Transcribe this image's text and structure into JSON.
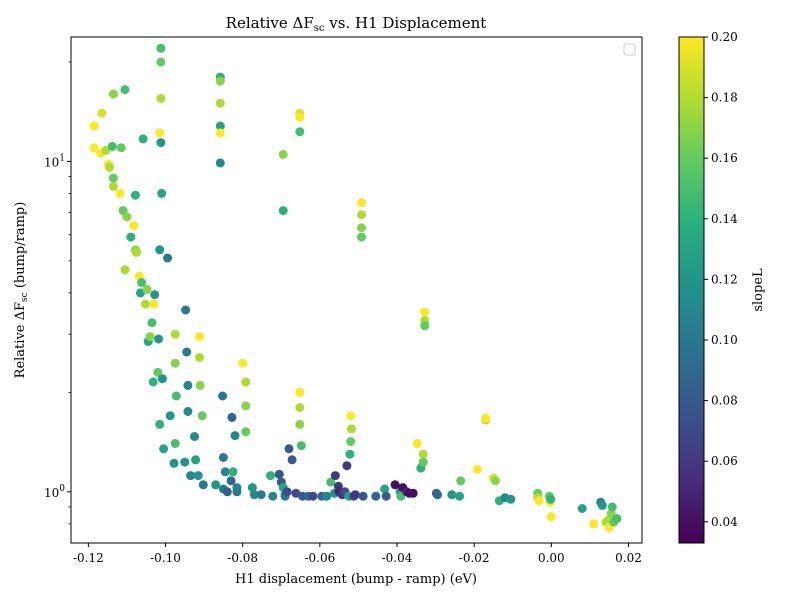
{
  "chart_data": {
    "type": "scatter",
    "title": "Relative ΔF",
    "title_sub": "sc",
    "title_tail": " vs. H1 Displacement",
    "xlabel": "H1 displacement (bump - ramp) (eV)",
    "ylabel": "Relative ΔF",
    "ylabel_sub": "sc",
    "ylabel_tail": " (bump/ramp)",
    "colorbar_label": "slopeL",
    "xlim": [
      -0.1245,
      0.0235
    ],
    "ylim": [
      0.7,
      23.8
    ],
    "yscale": "log",
    "clim": [
      0.033,
      0.2
    ],
    "colormap": "viridis",
    "grid": false,
    "legend": "top-right (empty)",
    "x_ticks": [
      "-0.12",
      "-0.10",
      "-0.08",
      "-0.06",
      "-0.04",
      "-0.02",
      "0.00",
      "0.02"
    ],
    "x_tick_values": [
      -0.12,
      -0.1,
      -0.08,
      -0.06,
      -0.04,
      -0.02,
      0.0,
      0.02
    ],
    "y_major_ticks": [
      1,
      10
    ],
    "y_major_labels": [
      "10",
      "10"
    ],
    "y_major_exps": [
      "0",
      "1"
    ],
    "y_minor_ticks": [
      0.8,
      0.9,
      2,
      3,
      4,
      5,
      6,
      7,
      8,
      9,
      20
    ],
    "colorbar_ticks": [
      "0.04",
      "0.06",
      "0.08",
      "0.10",
      "0.12",
      "0.14",
      "0.16",
      "0.18",
      "0.20"
    ],
    "colorbar_tick_values": [
      0.04,
      0.06,
      0.08,
      0.1,
      0.12,
      0.14,
      0.16,
      0.18,
      0.2
    ],
    "points": [
      [
        -0.1185,
        12.8,
        0.2
      ],
      [
        -0.1185,
        11.0,
        0.2
      ],
      [
        -0.1165,
        14.0,
        0.19
      ],
      [
        -0.1168,
        10.6,
        0.2
      ],
      [
        -0.1155,
        10.8,
        0.18
      ],
      [
        -0.1148,
        9.8,
        0.2
      ],
      [
        -0.1145,
        9.6,
        0.18
      ],
      [
        -0.1138,
        11.1,
        0.15
      ],
      [
        -0.1135,
        8.9,
        0.16
      ],
      [
        -0.1135,
        8.4,
        0.18
      ],
      [
        -0.1135,
        16.0,
        0.17
      ],
      [
        -0.1118,
        8.0,
        0.2
      ],
      [
        -0.1115,
        11.0,
        0.16
      ],
      [
        -0.111,
        7.1,
        0.16
      ],
      [
        -0.1105,
        16.5,
        0.15
      ],
      [
        -0.1105,
        4.7,
        0.18
      ],
      [
        -0.11,
        6.8,
        0.17
      ],
      [
        -0.109,
        5.9,
        0.14
      ],
      [
        -0.1082,
        6.4,
        0.2
      ],
      [
        -0.1078,
        5.4,
        0.17
      ],
      [
        -0.1078,
        7.9,
        0.14
      ],
      [
        -0.1075,
        5.3,
        0.18
      ],
      [
        -0.1068,
        4.5,
        0.2
      ],
      [
        -0.1065,
        4.0,
        0.13
      ],
      [
        -0.1062,
        4.3,
        0.15
      ],
      [
        -0.1058,
        11.7,
        0.14
      ],
      [
        -0.1052,
        3.7,
        0.18
      ],
      [
        -0.1048,
        4.1,
        0.17
      ],
      [
        -0.1045,
        2.85,
        0.13
      ],
      [
        -0.104,
        2.95,
        0.17
      ],
      [
        -0.1035,
        3.25,
        0.15
      ],
      [
        -0.1032,
        2.15,
        0.14
      ],
      [
        -0.103,
        3.7,
        0.2
      ],
      [
        -0.1028,
        3.95,
        0.12
      ],
      [
        -0.102,
        2.3,
        0.16
      ],
      [
        -0.1018,
        2.9,
        0.12
      ],
      [
        -0.1015,
        1.6,
        0.14
      ],
      [
        -0.1015,
        5.4,
        0.12
      ],
      [
        -0.1015,
        12.2,
        0.2
      ],
      [
        -0.1012,
        15.5,
        0.18
      ],
      [
        -0.1012,
        20.0,
        0.16
      ],
      [
        -0.1012,
        22.0,
        0.15
      ],
      [
        -0.1012,
        11.4,
        0.12
      ],
      [
        -0.101,
        8.0,
        0.13
      ],
      [
        -0.1008,
        2.2,
        0.12
      ],
      [
        -0.1005,
        1.35,
        0.13
      ],
      [
        -0.0995,
        5.1,
        0.1
      ],
      [
        -0.0988,
        1.7,
        0.12
      ],
      [
        -0.0978,
        1.22,
        0.12
      ],
      [
        -0.0975,
        1.4,
        0.15
      ],
      [
        -0.0975,
        3.0,
        0.18
      ],
      [
        -0.0975,
        2.45,
        0.17
      ],
      [
        -0.0972,
        1.95,
        0.15
      ],
      [
        -0.095,
        1.23,
        0.12
      ],
      [
        -0.0948,
        3.55,
        0.1
      ],
      [
        -0.0945,
        2.65,
        0.1
      ],
      [
        -0.0942,
        2.1,
        0.11
      ],
      [
        -0.0942,
        1.75,
        0.11
      ],
      [
        -0.0935,
        1.12,
        0.11
      ],
      [
        -0.0925,
        1.47,
        0.11
      ],
      [
        -0.0922,
        1.25,
        0.13
      ],
      [
        -0.0915,
        1.12,
        0.12
      ],
      [
        -0.0912,
        2.95,
        0.2
      ],
      [
        -0.0912,
        2.55,
        0.18
      ],
      [
        -0.091,
        2.1,
        0.17
      ],
      [
        -0.0905,
        1.7,
        0.16
      ],
      [
        -0.0902,
        1.05,
        0.1
      ],
      [
        -0.087,
        1.05,
        0.12
      ],
      [
        -0.0858,
        18.0,
        0.14
      ],
      [
        -0.0858,
        17.5,
        0.17
      ],
      [
        -0.0858,
        15.0,
        0.18
      ],
      [
        -0.0858,
        12.8,
        0.13
      ],
      [
        -0.0858,
        12.2,
        0.2
      ],
      [
        -0.0858,
        9.9,
        0.11
      ],
      [
        -0.0852,
        1.95,
        0.1
      ],
      [
        -0.085,
        1.27,
        0.1
      ],
      [
        -0.085,
        1.02,
        0.1
      ],
      [
        -0.0845,
        1.15,
        0.11
      ],
      [
        -0.084,
        1.0,
        0.08
      ],
      [
        -0.083,
        1.08,
        0.09
      ],
      [
        -0.0828,
        1.68,
        0.09
      ],
      [
        -0.0825,
        1.15,
        0.14
      ],
      [
        -0.082,
        1.48,
        0.11
      ],
      [
        -0.0815,
        1.03,
        0.11
      ],
      [
        -0.0815,
        1.0,
        0.1
      ],
      [
        -0.08,
        2.45,
        0.2
      ],
      [
        -0.0792,
        2.15,
        0.18
      ],
      [
        -0.0792,
        1.82,
        0.17
      ],
      [
        -0.0792,
        1.52,
        0.16
      ],
      [
        -0.0775,
        1.03,
        0.12
      ],
      [
        -0.077,
        0.98,
        0.11
      ],
      [
        -0.0752,
        0.98,
        0.1
      ],
      [
        -0.0728,
        1.12,
        0.14
      ],
      [
        -0.0722,
        0.97,
        0.11
      ],
      [
        -0.0705,
        1.13,
        0.08
      ],
      [
        -0.07,
        1.07,
        0.08
      ],
      [
        -0.0695,
        10.5,
        0.17
      ],
      [
        -0.0695,
        7.1,
        0.14
      ],
      [
        -0.0695,
        1.03,
        0.13
      ],
      [
        -0.069,
        0.98,
        0.12
      ],
      [
        -0.069,
        0.97,
        0.1
      ],
      [
        -0.0685,
        1.0,
        0.07
      ],
      [
        -0.068,
        1.35,
        0.08
      ],
      [
        -0.0672,
        1.25,
        0.08
      ],
      [
        -0.0662,
        0.99,
        0.07
      ],
      [
        -0.0652,
        14.0,
        0.19
      ],
      [
        -0.0652,
        13.6,
        0.2
      ],
      [
        -0.0652,
        12.3,
        0.15
      ],
      [
        -0.0652,
        2.0,
        0.2
      ],
      [
        -0.0652,
        1.8,
        0.18
      ],
      [
        -0.0652,
        1.6,
        0.17
      ],
      [
        -0.0648,
        1.38,
        0.15
      ],
      [
        -0.0645,
        0.97,
        0.08
      ],
      [
        -0.063,
        0.97,
        0.09
      ],
      [
        -0.0618,
        0.97,
        0.07
      ],
      [
        -0.0595,
        0.97,
        0.09
      ],
      [
        -0.0582,
        0.97,
        0.11
      ],
      [
        -0.0572,
        1.07,
        0.15
      ],
      [
        -0.0562,
        0.99,
        0.12
      ],
      [
        -0.056,
        1.12,
        0.06
      ],
      [
        -0.0552,
        1.04,
        0.06
      ],
      [
        -0.055,
        1.0,
        0.05
      ],
      [
        -0.0542,
        0.98,
        0.06
      ],
      [
        -0.0535,
        1.0,
        0.07
      ],
      [
        -0.053,
        1.2,
        0.06
      ],
      [
        -0.0525,
        0.97,
        0.13
      ],
      [
        -0.0522,
        1.3,
        0.14
      ],
      [
        -0.052,
        1.7,
        0.2
      ],
      [
        -0.052,
        1.42,
        0.16
      ],
      [
        -0.0518,
        1.55,
        0.18
      ],
      [
        -0.0512,
        0.97,
        0.07
      ],
      [
        -0.0508,
        0.98,
        0.06
      ],
      [
        -0.0492,
        7.5,
        0.2
      ],
      [
        -0.0492,
        6.9,
        0.18
      ],
      [
        -0.0492,
        6.3,
        0.17
      ],
      [
        -0.0492,
        5.9,
        0.16
      ],
      [
        -0.0488,
        0.97,
        0.08
      ],
      [
        -0.0455,
        0.97,
        0.09
      ],
      [
        -0.0432,
        1.02,
        0.13
      ],
      [
        -0.0428,
        0.97,
        0.08
      ],
      [
        -0.0405,
        1.05,
        0.04
      ],
      [
        -0.0392,
        1.0,
        0.12
      ],
      [
        -0.039,
        0.97,
        0.15
      ],
      [
        -0.0385,
        1.03,
        0.04
      ],
      [
        -0.0375,
        1.0,
        0.05
      ],
      [
        -0.0368,
        0.99,
        0.04
      ],
      [
        -0.0358,
        0.99,
        0.04
      ],
      [
        -0.0348,
        1.4,
        0.2
      ],
      [
        -0.0338,
        1.18,
        0.14
      ],
      [
        -0.0332,
        1.3,
        0.18
      ],
      [
        -0.0332,
        1.23,
        0.16
      ],
      [
        -0.0328,
        3.5,
        0.2
      ],
      [
        -0.0328,
        3.3,
        0.18
      ],
      [
        -0.0328,
        3.18,
        0.16
      ],
      [
        -0.0298,
        0.99,
        0.08
      ],
      [
        -0.0295,
        0.98,
        0.09
      ],
      [
        -0.0258,
        0.98,
        0.12
      ],
      [
        -0.0238,
        0.97,
        0.13
      ],
      [
        -0.0235,
        1.08,
        0.16
      ],
      [
        -0.0192,
        1.17,
        0.2
      ],
      [
        -0.017,
        1.65,
        0.18
      ],
      [
        -0.017,
        1.67,
        0.2
      ],
      [
        -0.015,
        1.1,
        0.19
      ],
      [
        -0.0145,
        1.08,
        0.17
      ],
      [
        -0.0135,
        0.94,
        0.14
      ],
      [
        -0.012,
        0.96,
        0.11
      ],
      [
        -0.0105,
        0.95,
        0.12
      ],
      [
        -0.0035,
        0.99,
        0.16
      ],
      [
        -0.0035,
        0.96,
        0.18
      ],
      [
        -0.0032,
        0.94,
        0.2
      ],
      [
        -0.0005,
        0.97,
        0.16
      ],
      [
        -0.0003,
        0.93,
        0.2
      ],
      [
        -0.0002,
        0.95,
        0.14
      ],
      [
        0.0,
        0.84,
        0.2
      ],
      [
        0.008,
        0.89,
        0.13
      ],
      [
        0.011,
        0.8,
        0.2
      ],
      [
        0.0128,
        0.93,
        0.11
      ],
      [
        0.0132,
        0.91,
        0.12
      ],
      [
        0.0142,
        0.81,
        0.18
      ],
      [
        0.0148,
        0.82,
        0.18
      ],
      [
        0.015,
        0.78,
        0.2
      ],
      [
        0.0155,
        0.86,
        0.17
      ],
      [
        0.0158,
        0.9,
        0.15
      ],
      [
        0.0162,
        0.81,
        0.16
      ],
      [
        0.017,
        0.83,
        0.15
      ]
    ]
  }
}
